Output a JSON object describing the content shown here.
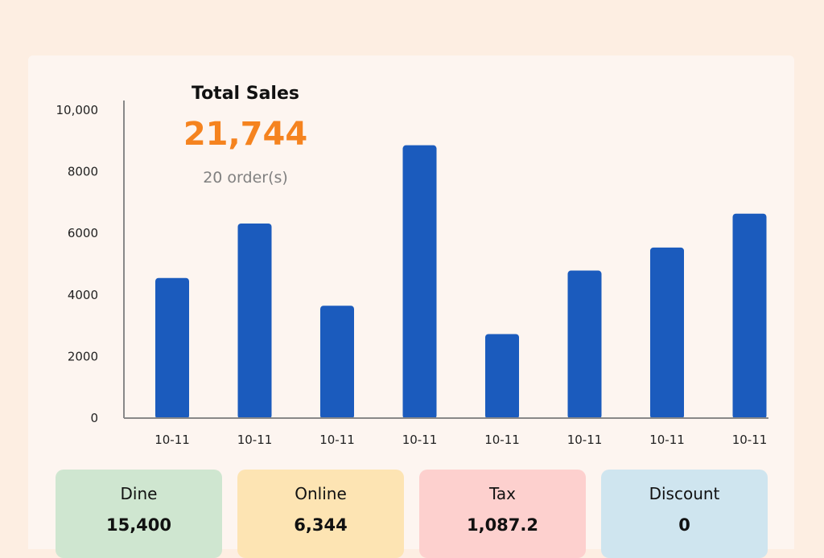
{
  "summary": {
    "title": "Total Sales",
    "total": "21,744",
    "orders": "20 order(s)"
  },
  "chart_data": {
    "type": "bar",
    "categories": [
      "10-11",
      "10-11",
      "10-11",
      "10-11",
      "10-11",
      "10-11",
      "10-11",
      "10-11"
    ],
    "values": [
      4550,
      6320,
      3650,
      8860,
      2730,
      4790,
      5540,
      6640
    ],
    "yticks": [
      0,
      2000,
      4000,
      6000,
      8000,
      10000
    ],
    "ytick_labels": [
      "0",
      "2000",
      "4000",
      "6000",
      "8000",
      "10,000"
    ],
    "ylim": [
      0,
      10000
    ],
    "bar_color": "#1b5bbd",
    "axis_color": "#888888",
    "grid": false
  },
  "tiles": [
    {
      "label": "Dine",
      "value": "15,400",
      "color": "#cfe6d0"
    },
    {
      "label": "Online",
      "value": "6,344",
      "color": "#fde4b3"
    },
    {
      "label": "Tax",
      "value": "1,087.2",
      "color": "#fdd0ce"
    },
    {
      "label": "Discount",
      "value": "0",
      "color": "#cfe5ef"
    }
  ]
}
